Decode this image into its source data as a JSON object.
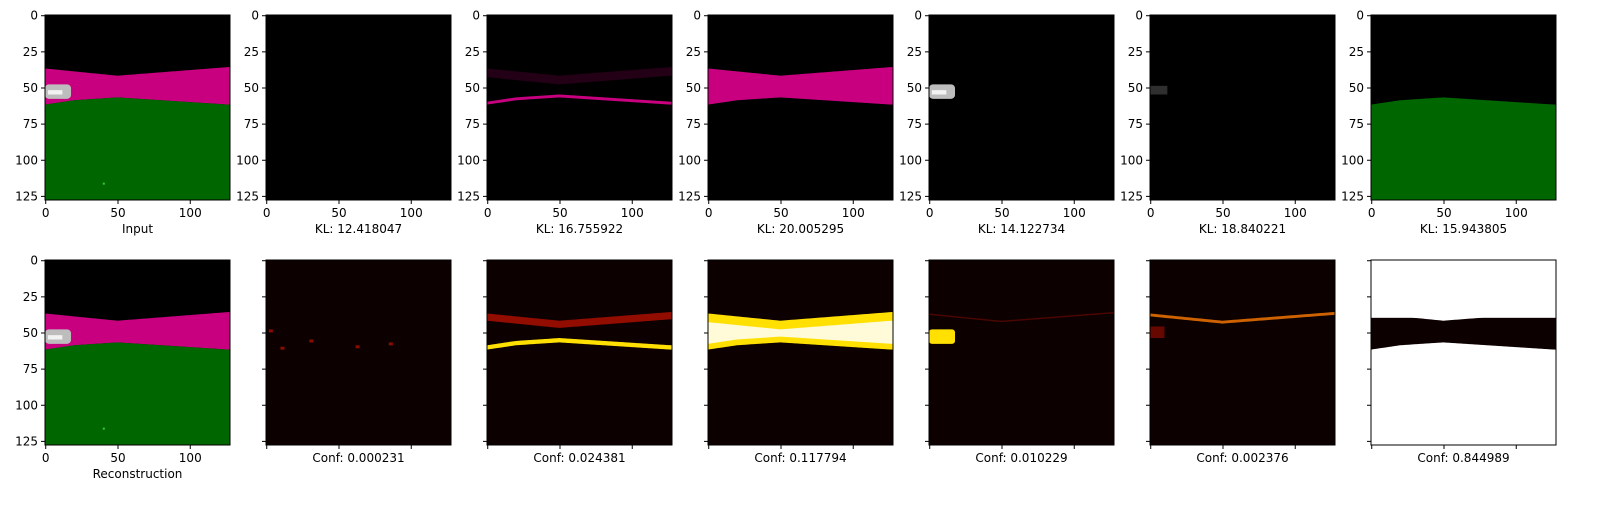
{
  "colors": {
    "black": "#000000",
    "magenta": "#c80080",
    "green": "#006600",
    "silver": "#bdbdbd",
    "dark_red": "#0d0000",
    "red": "#c01000",
    "orange": "#ff7a00",
    "yellow": "#ffe000",
    "white": "#ffffff"
  },
  "axes": {
    "xlim": [
      0,
      127
    ],
    "ylim": [
      127,
      0
    ],
    "xticks": [
      0,
      50,
      100
    ],
    "yticks": [
      0,
      25,
      50,
      75,
      100,
      125
    ],
    "x_tick_labels": [
      "0",
      "50",
      "100"
    ],
    "y_tick_labels": [
      "0",
      "25",
      "50",
      "75",
      "100",
      "125"
    ]
  },
  "chart_data": {
    "type": "heatmap",
    "image_size": [
      128,
      128
    ],
    "top_row": {
      "panels": [
        {
          "kind": "input",
          "caption": "Input"
        },
        {
          "kind": "empty",
          "caption": "KL: 12.418047"
        },
        {
          "kind": "magenta_faint",
          "caption": "KL: 16.755922"
        },
        {
          "kind": "magenta_full",
          "caption": "KL: 20.005295"
        },
        {
          "kind": "car",
          "caption": "KL: 14.122734"
        },
        {
          "kind": "car_faint",
          "caption": "KL: 18.840221"
        },
        {
          "kind": "green",
          "caption": "KL: 15.943805"
        }
      ]
    },
    "bottom_row": {
      "panels": [
        {
          "kind": "input",
          "caption": "Reconstruction"
        },
        {
          "kind": "heat_sparse",
          "caption": "Conf: 0.000231"
        },
        {
          "kind": "heat_band_edges",
          "caption": "Conf: 0.024381"
        },
        {
          "kind": "heat_band_full",
          "caption": "Conf: 0.117794"
        },
        {
          "kind": "heat_car",
          "caption": "Conf: 0.010229"
        },
        {
          "kind": "heat_thin_line",
          "caption": "Conf: 0.002376"
        },
        {
          "kind": "heat_ground",
          "caption": "Conf: 0.844989"
        }
      ]
    },
    "scene": {
      "band_top": [
        [
          0,
          37
        ],
        [
          50,
          42
        ],
        [
          127,
          36
        ]
      ],
      "band_bottom": [
        [
          0,
          62
        ],
        [
          20,
          59
        ],
        [
          50,
          57
        ],
        [
          127,
          62
        ]
      ],
      "car": {
        "x0": 0,
        "x1": 18,
        "y0": 48,
        "y1": 58
      },
      "green_dot": [
        40,
        116
      ]
    }
  }
}
